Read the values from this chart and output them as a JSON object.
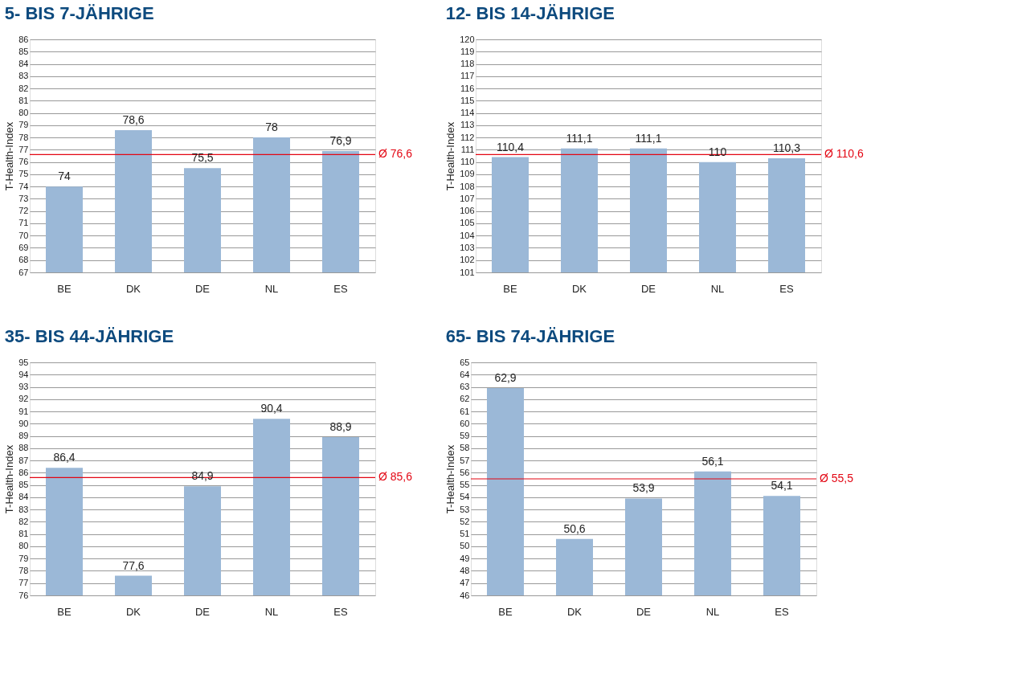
{
  "chart_data": [
    {
      "type": "bar",
      "title": "5- BIS 7-JÄHRIGE",
      "ylabel": "T-Health-Index",
      "categories": [
        "BE",
        "DK",
        "DE",
        "NL",
        "ES"
      ],
      "values": [
        74,
        78.6,
        75.5,
        78,
        76.9
      ],
      "value_labels": [
        "74",
        "78,6",
        "75,5",
        "78",
        "76,9"
      ],
      "color": "#9bb8d7",
      "ylim": [
        67,
        86
      ],
      "yticks": [
        67,
        68,
        69,
        70,
        71,
        72,
        73,
        74,
        75,
        76,
        77,
        78,
        79,
        80,
        81,
        82,
        83,
        84,
        85,
        86
      ],
      "grid": "y",
      "ref_lines": [
        {
          "axis": "y",
          "value": 76.6,
          "label": "Ø 76,6",
          "color": "#e30613"
        }
      ]
    },
    {
      "type": "bar",
      "title": "12- BIS 14-JÄHRIGE",
      "ylabel": "T-Health-Index",
      "categories": [
        "BE",
        "DK",
        "DE",
        "NL",
        "ES"
      ],
      "values": [
        110.4,
        111.1,
        111.1,
        110,
        110.3
      ],
      "value_labels": [
        "110,4",
        "111,1",
        "111,1",
        "110",
        "110,3"
      ],
      "color": "#9bb8d7",
      "ylim": [
        101,
        120
      ],
      "yticks": [
        101,
        102,
        103,
        104,
        105,
        106,
        107,
        108,
        109,
        110,
        111,
        112,
        113,
        114,
        115,
        116,
        117,
        118,
        119,
        120
      ],
      "grid": "y",
      "ref_lines": [
        {
          "axis": "y",
          "value": 110.6,
          "label": "Ø 110,6",
          "color": "#e30613"
        }
      ]
    },
    {
      "type": "bar",
      "title": "35- BIS 44-JÄHRIGE",
      "ylabel": "T-Health-Index",
      "categories": [
        "BE",
        "DK",
        "DE",
        "NL",
        "ES"
      ],
      "values": [
        86.4,
        77.6,
        84.9,
        90.4,
        88.9
      ],
      "value_labels": [
        "86,4",
        "77,6",
        "84,9",
        "90,4",
        "88,9"
      ],
      "color": "#9bb8d7",
      "ylim": [
        76,
        95
      ],
      "yticks": [
        76,
        77,
        78,
        79,
        80,
        81,
        82,
        83,
        84,
        85,
        86,
        87,
        88,
        89,
        90,
        91,
        92,
        93,
        94,
        95
      ],
      "grid": "y",
      "ref_lines": [
        {
          "axis": "y",
          "value": 85.6,
          "label": "Ø 85,6",
          "color": "#e30613"
        }
      ]
    },
    {
      "type": "bar",
      "title": "65- BIS 74-JÄHRIGE",
      "ylabel": "T-Health-Index",
      "categories": [
        "BE",
        "DK",
        "DE",
        "NL",
        "ES"
      ],
      "values": [
        62.9,
        50.6,
        53.9,
        56.1,
        54.1
      ],
      "value_labels": [
        "62,9",
        "50,6",
        "53,9",
        "56,1",
        "54,1"
      ],
      "color": "#9bb8d7",
      "ylim": [
        46,
        65
      ],
      "yticks": [
        46,
        47,
        48,
        49,
        50,
        51,
        52,
        53,
        54,
        55,
        56,
        57,
        58,
        59,
        60,
        61,
        62,
        63,
        64,
        65
      ],
      "grid": "y",
      "ref_lines": [
        {
          "axis": "y",
          "value": 55.5,
          "label": "Ø 55,5",
          "color": "#e30613"
        }
      ]
    }
  ]
}
